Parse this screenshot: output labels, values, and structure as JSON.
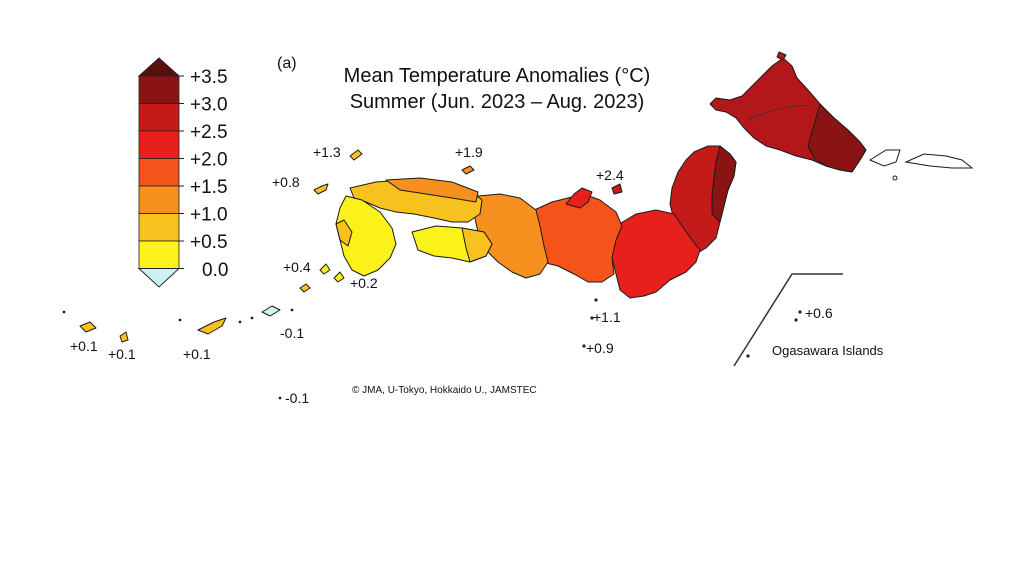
{
  "figure": {
    "panel_label": "(a)",
    "title_line1": "Mean Temperature Anomalies (°C)",
    "title_line2": "Summer (Jun. 2023 – Aug. 2023)",
    "credit": "© JMA, U-Tokyo, Hokkaido U., JAMSTEC",
    "inset_label": "Ogasawara Islands"
  },
  "legend": {
    "ticks": [
      "+3.5",
      "+3.0",
      "+2.5",
      "+2.0",
      "+1.5",
      "+1.0",
      "+0.5",
      "0.0"
    ],
    "colors": [
      "#5a0f0f",
      "#8a1414",
      "#c41a1a",
      "#e8201c",
      "#f4541a",
      "#f7901e",
      "#f8c21e",
      "#fbf21c",
      "#cdf2f2"
    ]
  },
  "map_colors": {
    "hokkaido": "#b3171a",
    "hokkaido_east": "#8a1414",
    "tohoku": "#c41a1a",
    "kanto": "#e8201c",
    "chubu": "#f4541a",
    "kinki": "#f7901e",
    "chugoku": "#f8c21e",
    "kyushu": "#fbf21c",
    "islands": "#f8c21e",
    "mixed_island": "#cdf2f2"
  },
  "station_values": [
    {
      "id": "tsushima",
      "text": "+1.3"
    },
    {
      "id": "goto",
      "text": "+0.8"
    },
    {
      "id": "oki",
      "text": "+1.9"
    },
    {
      "id": "sado",
      "text": "+2.4"
    },
    {
      "id": "koshiki",
      "text": "+0.4"
    },
    {
      "id": "tanegashima",
      "text": "+0.2"
    },
    {
      "id": "sakishima-1",
      "text": "+0.1"
    },
    {
      "id": "sakishima-2",
      "text": "+0.1"
    },
    {
      "id": "okinawa",
      "text": "+0.1"
    },
    {
      "id": "daito",
      "text": "-0.1"
    },
    {
      "id": "oki-daito",
      "text": "-0.1"
    },
    {
      "id": "izu-hachijo",
      "text": "+1.1"
    },
    {
      "id": "izu-south",
      "text": "+0.9"
    },
    {
      "id": "ogasawara",
      "text": "+0.6"
    }
  ]
}
